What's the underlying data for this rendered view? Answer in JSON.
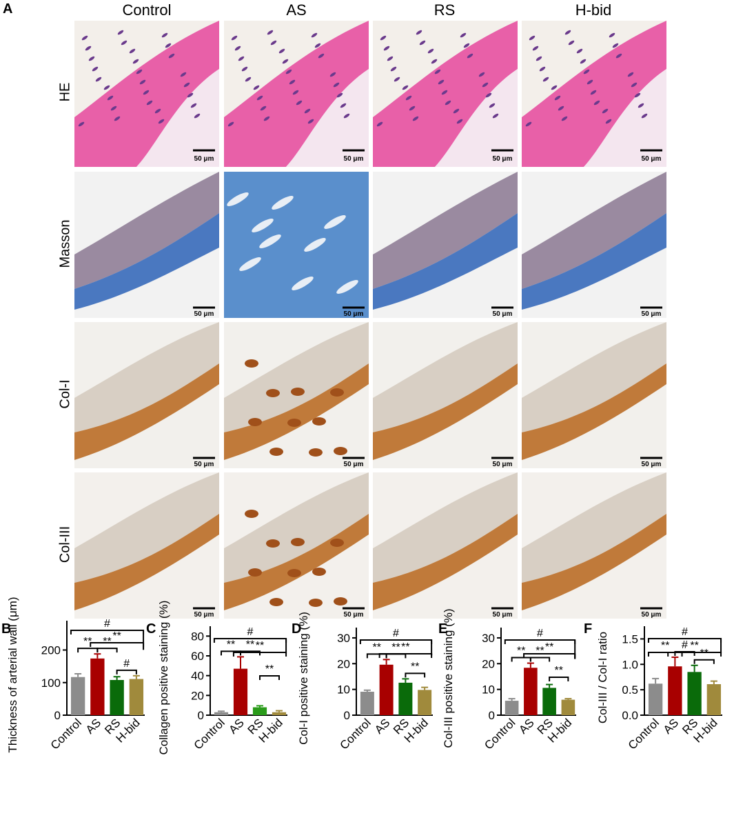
{
  "panel_letters": [
    "A",
    "B",
    "C",
    "D",
    "E",
    "F"
  ],
  "columns": [
    "Control",
    "AS",
    "RS",
    "H-bid"
  ],
  "rows": [
    "HE",
    "Masson",
    "Col-I",
    "Col-III"
  ],
  "scale_bar_label": "50 μm",
  "colors": {
    "Control": "#8c8c8c",
    "AS": "#a80000",
    "RS": "#0a6b0a",
    "H-bid": "#a08a3c",
    "RS_C": "#2a9b1a"
  },
  "chart_data": [
    {
      "type": "bar",
      "panel": "B",
      "categories": [
        "Control",
        "AS",
        "RS",
        "H-bid"
      ],
      "values": [
        117,
        174,
        108,
        111
      ],
      "errors": [
        10,
        14,
        10,
        10
      ],
      "ylabel": "Thickness of arterial wall (μm)",
      "ylim": [
        0,
        290
      ],
      "yticks": [
        "0",
        "100",
        "200"
      ],
      "ytick_values": [
        0,
        100,
        200
      ],
      "annotations": [
        {
          "from": 0,
          "to": 3,
          "label": "#",
          "level": 4
        },
        {
          "from": 1,
          "to": 3,
          "label": "**",
          "level": 3
        },
        {
          "from": 0,
          "to": 1,
          "label": "**",
          "level": 1
        },
        {
          "from": 1,
          "to": 2,
          "label": "**",
          "level": 1
        },
        {
          "from": 2,
          "to": 3,
          "label": "#",
          "level": 1
        }
      ]
    },
    {
      "type": "bar",
      "panel": "C",
      "categories": [
        "Control",
        "AS",
        "RS",
        "H-bid"
      ],
      "values": [
        3,
        47,
        8,
        3
      ],
      "errors": [
        1,
        12,
        1.5,
        1.5
      ],
      "ylabel": "Collagen positive staining (%)",
      "ylim": [
        0,
        90
      ],
      "yticks": [
        "0",
        "20",
        "40",
        "60",
        "80"
      ],
      "ytick_values": [
        0,
        20,
        40,
        60,
        80
      ],
      "annotations": [
        {
          "from": 0,
          "to": 3,
          "label": "#",
          "level": 4
        },
        {
          "from": 1,
          "to": 3,
          "label": "**",
          "level": 3
        },
        {
          "from": 0,
          "to": 1,
          "label": "**",
          "level": 1
        },
        {
          "from": 1,
          "to": 2,
          "label": "**",
          "level": 1
        },
        {
          "from": 2,
          "to": 3,
          "label": "**",
          "level": 1
        }
      ]
    },
    {
      "type": "bar",
      "panel": "D",
      "categories": [
        "Control",
        "AS",
        "RS",
        "H-bid"
      ],
      "values": [
        9.1,
        19.6,
        12.6,
        9.8
      ],
      "errors": [
        0.6,
        2.0,
        1.5,
        1.0
      ],
      "ylabel": "Col-I positive staining (%)",
      "ylim": [
        0,
        34
      ],
      "yticks": [
        "0",
        "10",
        "20",
        "30"
      ],
      "ytick_values": [
        0,
        10,
        20,
        30
      ],
      "annotations": [
        {
          "from": 0,
          "to": 3,
          "label": "#",
          "level": 4
        },
        {
          "from": 1,
          "to": 3,
          "label": "**",
          "level": 3
        },
        {
          "from": 0,
          "to": 1,
          "label": "**",
          "level": 1
        },
        {
          "from": 1,
          "to": 2,
          "label": "**",
          "level": 1
        },
        {
          "from": 2,
          "to": 3,
          "label": "**",
          "level": 1
        }
      ]
    },
    {
      "type": "bar",
      "panel": "E",
      "categories": [
        "Control",
        "AS",
        "RS",
        "H-bid"
      ],
      "values": [
        5.6,
        18.4,
        10.6,
        6.0
      ],
      "errors": [
        0.8,
        1.8,
        1.3,
        0.4
      ],
      "ylabel": "Col-III positive staining (%)",
      "ylim": [
        0,
        34
      ],
      "yticks": [
        "0",
        "10",
        "20",
        "30"
      ],
      "ytick_values": [
        0,
        10,
        20,
        30
      ],
      "annotations": [
        {
          "from": 0,
          "to": 3,
          "label": "#",
          "level": 4
        },
        {
          "from": 1,
          "to": 3,
          "label": "**",
          "level": 3
        },
        {
          "from": 0,
          "to": 1,
          "label": "**",
          "level": 1
        },
        {
          "from": 1,
          "to": 2,
          "label": "**",
          "level": 1
        },
        {
          "from": 2,
          "to": 3,
          "label": "**",
          "level": 1
        }
      ]
    },
    {
      "type": "bar",
      "panel": "F",
      "categories": [
        "Control",
        "AS",
        "RS",
        "H-bid"
      ],
      "values": [
        0.62,
        0.96,
        0.85,
        0.61
      ],
      "errors": [
        0.1,
        0.18,
        0.13,
        0.06
      ],
      "ylabel": "Col-III / Col-I ratio",
      "ylim": [
        0,
        1.75
      ],
      "yticks": [
        "0.0",
        "0.5",
        "1.0",
        "1.5"
      ],
      "ytick_values": [
        0,
        0.5,
        1.0,
        1.5
      ],
      "annotations": [
        {
          "from": 0,
          "to": 3,
          "label": "#",
          "level": 4
        },
        {
          "from": 1,
          "to": 3,
          "label": "**",
          "level": 3
        },
        {
          "from": 0,
          "to": 1,
          "label": "**",
          "level": 3
        },
        {
          "from": 1,
          "to": 2,
          "label": "#",
          "level": 1
        },
        {
          "from": 2,
          "to": 3,
          "label": "**",
          "level": 1
        }
      ]
    }
  ]
}
